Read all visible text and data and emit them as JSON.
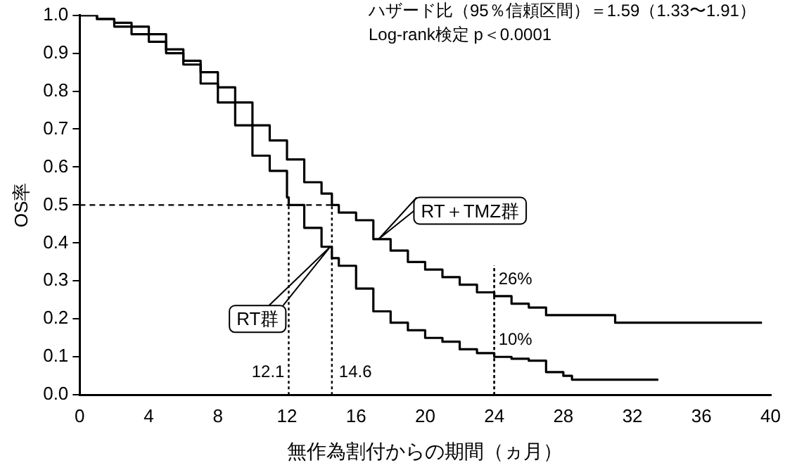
{
  "chart_data": {
    "type": "step",
    "xlabel": "無作為割付からの期間（ヵ月）",
    "ylabel": "OS率",
    "annotations": [
      "ハザード比（95％信頼区間）＝1.59（1.33〜1.91）",
      "Log-rank検定 p＜0.0001",
      {
        "text": "12.1",
        "x": 12.1,
        "y": 0.5
      },
      {
        "text": "14.6",
        "x": 14.6,
        "y": 0.5
      },
      {
        "text": "26%",
        "x": 24,
        "y": 0.26
      },
      {
        "text": "10%",
        "x": 24,
        "y": 0.1
      }
    ],
    "ref_lines": [
      {
        "axis": "y",
        "value": 0.5,
        "line_style": "dashed"
      }
    ],
    "series": [
      {
        "name": "RT＋TMZ群",
        "color": "#000000",
        "x": [
          0,
          1,
          2,
          3,
          4,
          5,
          6,
          7,
          8,
          9,
          10,
          11,
          12,
          13,
          14,
          14.6,
          15,
          16,
          17,
          18,
          19,
          20,
          21,
          22,
          23,
          24,
          25,
          26,
          27,
          30,
          31,
          39.5
        ],
        "values": [
          1.0,
          0.99,
          0.98,
          0.97,
          0.95,
          0.91,
          0.88,
          0.85,
          0.81,
          0.77,
          0.71,
          0.67,
          0.62,
          0.56,
          0.53,
          0.5,
          0.48,
          0.46,
          0.41,
          0.38,
          0.35,
          0.33,
          0.31,
          0.29,
          0.27,
          0.26,
          0.24,
          0.23,
          0.21,
          0.21,
          0.19,
          0.19
        ]
      },
      {
        "name": "RT群",
        "color": "#000000",
        "x": [
          0,
          1,
          2,
          3,
          4,
          5,
          6,
          7,
          8,
          9,
          10,
          11,
          12,
          12.1,
          13,
          14,
          14.6,
          15,
          16,
          17,
          18,
          19,
          20,
          21,
          22,
          23,
          24,
          25,
          26,
          27,
          28,
          28.5,
          33.5
        ],
        "values": [
          1.0,
          0.99,
          0.97,
          0.95,
          0.93,
          0.9,
          0.87,
          0.82,
          0.77,
          0.71,
          0.63,
          0.59,
          0.52,
          0.5,
          0.44,
          0.39,
          0.36,
          0.34,
          0.28,
          0.22,
          0.19,
          0.17,
          0.15,
          0.14,
          0.12,
          0.11,
          0.1,
          0.095,
          0.09,
          0.06,
          0.05,
          0.04,
          0.04
        ]
      }
    ],
    "xlim": [
      0,
      40
    ],
    "xticks": [
      0,
      4,
      8,
      12,
      16,
      20,
      24,
      28,
      32,
      36,
      40
    ],
    "ylim": [
      0,
      1
    ],
    "yticks": [
      {
        "value": 0,
        "label": "0.0"
      },
      {
        "value": 0.1,
        "label": "0.1"
      },
      {
        "value": 0.2,
        "label": "0.2"
      },
      {
        "value": 0.3,
        "label": "0.3"
      },
      {
        "value": 0.4,
        "label": "0.4"
      },
      {
        "value": 0.5,
        "label": "0.5"
      },
      {
        "value": 0.6,
        "label": "0.6"
      },
      {
        "value": 0.7,
        "label": "0.7"
      },
      {
        "value": 0.8,
        "label": "0.8"
      },
      {
        "value": 0.9,
        "label": "0.9"
      },
      {
        "value": 1,
        "label": "1.0"
      }
    ],
    "legend": false,
    "grid": false
  }
}
